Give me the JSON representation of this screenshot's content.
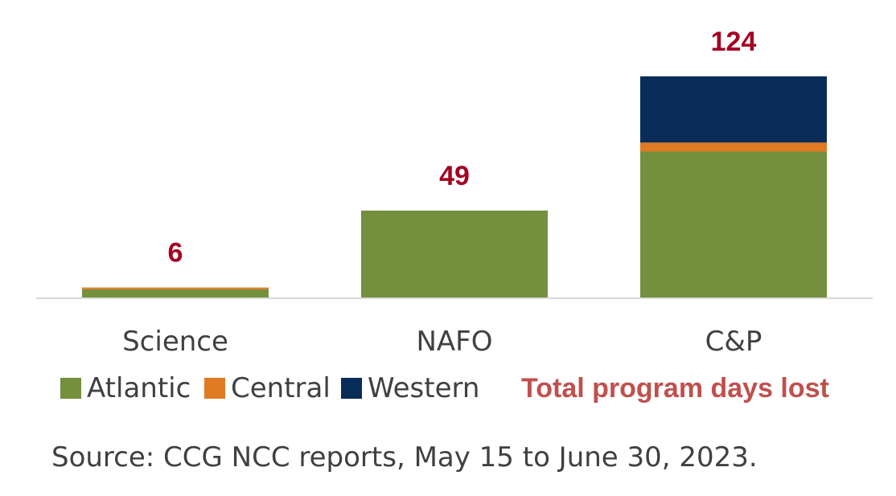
{
  "chart_data": {
    "type": "bar",
    "stacked": true,
    "categories": [
      "Science",
      "NAFO",
      "C&P"
    ],
    "series": [
      {
        "name": "Atlantic",
        "color": "#748f3d",
        "values": [
          5,
          49,
          82
        ]
      },
      {
        "name": "Central",
        "color": "#e07b24",
        "values": [
          1,
          0,
          5
        ]
      },
      {
        "name": "Western",
        "color": "#0a2c58",
        "values": [
          0,
          0,
          37
        ]
      }
    ],
    "totals": [
      6,
      49,
      124
    ],
    "totals_label": "Total program days lost",
    "totals_color": "#a50021",
    "ylim": [
      0,
      124
    ],
    "grid": false,
    "legend_position": "bottom",
    "source": "Source: CCG NCC reports, May 15 to June 30, 2023."
  }
}
